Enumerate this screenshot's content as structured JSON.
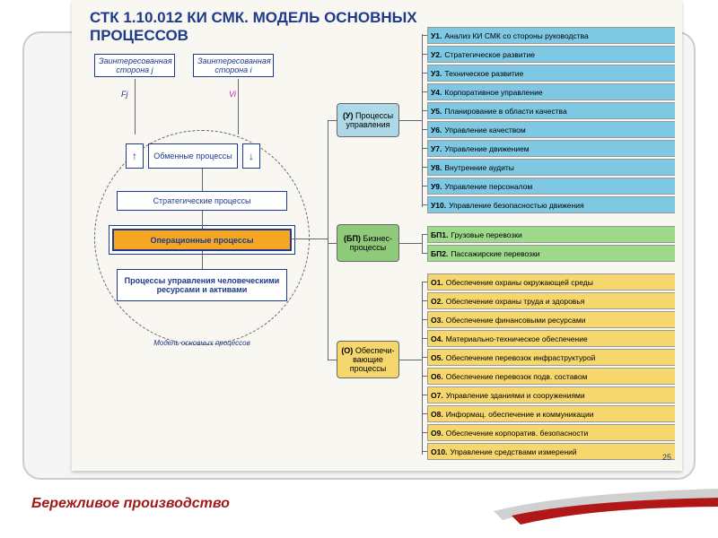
{
  "title": "СТК 1.10.012 КИ СМК. МОДЕЛЬ ОСНОВНЫХ ПРОЦЕССОВ",
  "footer_title": "Бережливое производство",
  "page_number": "25",
  "ext_parties": {
    "j": {
      "label": "Заинтересованная сторона j",
      "flow": "Fj",
      "flow_color": "#1e3a8a"
    },
    "i": {
      "label": "Заинтересованная сторона i",
      "flow": "Vi",
      "flow_color": "#c41e9a"
    }
  },
  "circle_label": "Модель основных процессов",
  "inner_processes": {
    "exchange": {
      "label": "Обменные процессы",
      "bg": "#ffffff"
    },
    "strategic": {
      "label": "Стратегические процессы",
      "bg": "#ffffff"
    },
    "operational": {
      "label": "Операционные процессы",
      "bg": "#f5a623",
      "color": "#1e3a8a",
      "weight": "bold"
    },
    "hr": {
      "label": "Процессы управления человеческими ресурсами и активами",
      "bg": "#ffffff"
    }
  },
  "arrow_up": "↑",
  "arrow_down": "↓",
  "categories": {
    "mgmt": {
      "code": "(У)",
      "label": "Процессы управления",
      "bg": "#aed8e6"
    },
    "biz": {
      "code": "(БП)",
      "label": "Бизнес-процессы",
      "bg": "#8fc97a"
    },
    "supp": {
      "code": "(О)",
      "label": "Обеспечи-вающие процессы",
      "bg": "#f5d76e"
    }
  },
  "colors": {
    "mgmt_row": "#7ec8e3",
    "biz_row": "#9ed88a",
    "supp_row": "#f5d76e",
    "title_blue": "#1e3a8a"
  },
  "mgmt_items": [
    {
      "code": "У1.",
      "text": "Анализ КИ СМК со стороны руководства"
    },
    {
      "code": "У2.",
      "text": "Стратегическое развитие"
    },
    {
      "code": "У3.",
      "text": "Техническое развитие"
    },
    {
      "code": "У4.",
      "text": "Корпоративное управление"
    },
    {
      "code": "У5.",
      "text": "Планирование в области качества"
    },
    {
      "code": "У6.",
      "text": "Управление качеством"
    },
    {
      "code": "У7.",
      "text": "Управление движением"
    },
    {
      "code": "У8.",
      "text": "Внутренние аудиты"
    },
    {
      "code": "У9.",
      "text": "Управление персоналом"
    },
    {
      "code": "У10.",
      "text": "Управление безопасностью движения"
    }
  ],
  "biz_items": [
    {
      "code": "БП1.",
      "text": "Грузовые перевозки"
    },
    {
      "code": "БП2.",
      "text": "Пассажирские перевозки"
    }
  ],
  "supp_items": [
    {
      "code": "О1.",
      "text": "Обеспечение охраны окружающей среды"
    },
    {
      "code": "О2.",
      "text": "Обеспечение охраны труда и здоровья"
    },
    {
      "code": "О3.",
      "text": "Обеспечение финансовыми ресурсами"
    },
    {
      "code": "О4.",
      "text": "Материально-техническое обеспечение"
    },
    {
      "code": "О5.",
      "text": "Обеспечение перевозок инфраструктурой"
    },
    {
      "code": "О6.",
      "text": "Обеспечение перевозок подв. составом"
    },
    {
      "code": "О7.",
      "text": "Управление зданиями и сооружениями"
    },
    {
      "code": "О8.",
      "text": "Информац. обеспечение и коммуникации"
    },
    {
      "code": "О9.",
      "text": "Обеспечение корпоратив. безопасности"
    },
    {
      "code": "О10.",
      "text": "Управление средствами измерений"
    }
  ]
}
